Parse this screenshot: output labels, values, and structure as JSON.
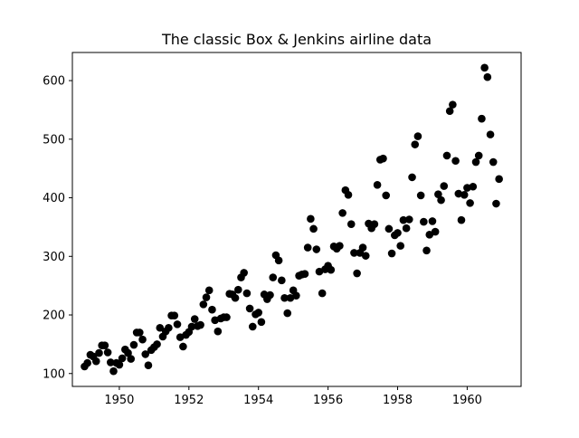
{
  "chart_data": {
    "type": "scatter",
    "title": "The classic Box &  Jenkins airline data",
    "xlabel": "",
    "ylabel": "",
    "xlim": [
      1948.65,
      1961.55
    ],
    "ylim": [
      78.0,
      648.0
    ],
    "xticks": [
      1950,
      1952,
      1954,
      1956,
      1958,
      1960
    ],
    "yticks": [
      100,
      200,
      300,
      400,
      500,
      600
    ],
    "grid": false,
    "legend": "none",
    "marker_color": "#000000",
    "series": [
      {
        "x": [
          1949.0,
          1949.083,
          1949.167,
          1949.25,
          1949.333,
          1949.417,
          1949.5,
          1949.583,
          1949.667,
          1949.75,
          1949.833,
          1949.917,
          1950.0,
          1950.083,
          1950.167,
          1950.25,
          1950.333,
          1950.417,
          1950.5,
          1950.583,
          1950.667,
          1950.75,
          1950.833,
          1950.917,
          1951.0,
          1951.083,
          1951.167,
          1951.25,
          1951.333,
          1951.417,
          1951.5,
          1951.583,
          1951.667,
          1951.75,
          1951.833,
          1951.917,
          1952.0,
          1952.083,
          1952.167,
          1952.25,
          1952.333,
          1952.417,
          1952.5,
          1952.583,
          1952.667,
          1952.75,
          1952.833,
          1952.917,
          1953.0,
          1953.083,
          1953.167,
          1953.25,
          1953.333,
          1953.417,
          1953.5,
          1953.583,
          1953.667,
          1953.75,
          1953.833,
          1953.917,
          1954.0,
          1954.083,
          1954.167,
          1954.25,
          1954.333,
          1954.417,
          1954.5,
          1954.583,
          1954.667,
          1954.75,
          1954.833,
          1954.917,
          1955.0,
          1955.083,
          1955.167,
          1955.25,
          1955.333,
          1955.417,
          1955.5,
          1955.583,
          1955.667,
          1955.75,
          1955.833,
          1955.917,
          1956.0,
          1956.083,
          1956.167,
          1956.25,
          1956.333,
          1956.417,
          1956.5,
          1956.583,
          1956.667,
          1956.75,
          1956.833,
          1956.917,
          1957.0,
          1957.083,
          1957.167,
          1957.25,
          1957.333,
          1957.417,
          1957.5,
          1957.583,
          1957.667,
          1957.75,
          1957.833,
          1957.917,
          1958.0,
          1958.083,
          1958.167,
          1958.25,
          1958.333,
          1958.417,
          1958.5,
          1958.583,
          1958.667,
          1958.75,
          1958.833,
          1958.917,
          1959.0,
          1959.083,
          1959.167,
          1959.25,
          1959.333,
          1959.417,
          1959.5,
          1959.583,
          1959.667,
          1959.75,
          1959.833,
          1959.917,
          1960.0,
          1960.083,
          1960.167,
          1960.25,
          1960.333,
          1960.417,
          1960.5,
          1960.583,
          1960.667,
          1960.75,
          1960.833,
          1960.917
        ],
        "y": [
          112,
          118,
          132,
          129,
          121,
          135,
          148,
          148,
          136,
          119,
          104,
          118,
          115,
          126,
          141,
          135,
          125,
          149,
          170,
          170,
          158,
          133,
          114,
          140,
          145,
          150,
          178,
          163,
          172,
          178,
          199,
          199,
          184,
          162,
          146,
          166,
          171,
          180,
          193,
          181,
          183,
          218,
          230,
          242,
          209,
          191,
          172,
          194,
          196,
          196,
          236,
          235,
          229,
          243,
          264,
          272,
          237,
          211,
          180,
          201,
          204,
          188,
          235,
          227,
          234,
          264,
          302,
          293,
          259,
          229,
          203,
          229,
          242,
          233,
          267,
          269,
          270,
          315,
          364,
          347,
          312,
          274,
          237,
          278,
          284,
          277,
          317,
          313,
          318,
          374,
          413,
          405,
          355,
          306,
          271,
          306,
          315,
          301,
          356,
          348,
          355,
          422,
          465,
          467,
          404,
          347,
          305,
          336,
          340,
          318,
          362,
          348,
          363,
          435,
          491,
          505,
          404,
          359,
          310,
          337,
          360,
          342,
          406,
          396,
          420,
          472,
          548,
          559,
          463,
          407,
          362,
          405,
          417,
          391,
          419,
          461,
          472,
          535,
          622,
          606,
          508,
          461,
          390,
          432
        ]
      }
    ]
  }
}
